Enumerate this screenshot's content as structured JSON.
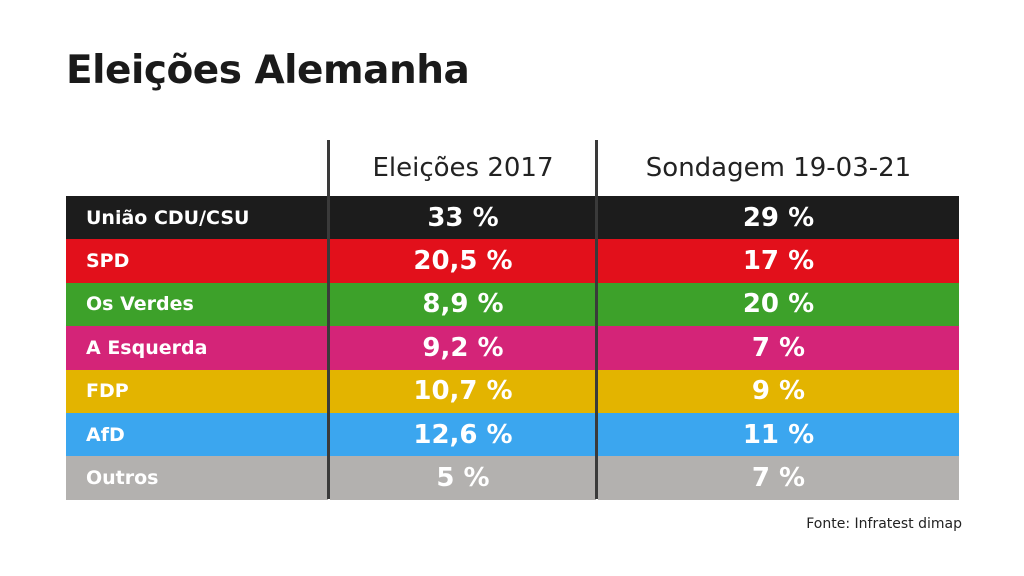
{
  "title": "Eleições Alemanha",
  "source": "Fonte: Infratest dimap",
  "chart_data": {
    "type": "table",
    "columns": [
      "",
      "Eleições 2017",
      "Sondagem 19-03-21"
    ],
    "rows": [
      {
        "party": "União CDU/CSU",
        "v2017": "33 %",
        "v2021": "29 %",
        "color": "#1c1c1c"
      },
      {
        "party": "SPD",
        "v2017": "20,5 %",
        "v2021": "17 %",
        "color": "#e2101b"
      },
      {
        "party": "Os Verdes",
        "v2017": "8,9 %",
        "v2021": "20 %",
        "color": "#3da12a"
      },
      {
        "party": "A Esquerda",
        "v2017": "9,2 %",
        "v2021": "7 %",
        "color": "#d42478"
      },
      {
        "party": "FDP",
        "v2017": "10,7 %",
        "v2021": "9 %",
        "color": "#e3b400"
      },
      {
        "party": "AfD",
        "v2017": "12,6 %",
        "v2021": "11 %",
        "color": "#3ba6ef"
      },
      {
        "party": "Outros",
        "v2017": "5 %",
        "v2021": "7 %",
        "color": "#b3b1af"
      }
    ]
  }
}
